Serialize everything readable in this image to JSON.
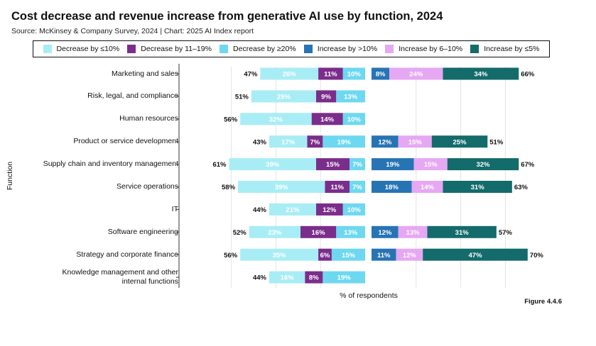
{
  "title": "Cost decrease and revenue increase from generative AI use by function, 2024",
  "subtitle": "Source: McKinsey & Company Survey, 2024 | Chart: 2025 AI Index report",
  "figure_label": "Figure 4.4.6",
  "legend": [
    {
      "label": "Decrease by ≤10%",
      "color": "#a8edf5"
    },
    {
      "label": "Decrease by 11–19%",
      "color": "#7b2d8b"
    },
    {
      "label": "Decrease by ≥20%",
      "color": "#6dd8f0"
    },
    {
      "label": "Increase by >10%",
      "color": "#2774b5"
    },
    {
      "label": "Increase by 6–10%",
      "color": "#e6a8f2"
    },
    {
      "label": "Increase by ≤5%",
      "color": "#136b6b"
    }
  ],
  "chart_data": {
    "type": "bar",
    "orientation": "horizontal-stacked-diverging",
    "xlabel": "% of respondents",
    "ylabel": "Function",
    "categories": [
      "Marketing and sales",
      "Risk, legal, and compliance",
      "Human resources",
      "Product or service development",
      "Supply chain and inventory management",
      "Service operations",
      "IT",
      "Software engineering",
      "Strategy and corporate finance",
      "Knowledge management and other internal functions"
    ],
    "category_lines": [
      [
        "Marketing and sales"
      ],
      [
        "Risk, legal, and compliance"
      ],
      [
        "Human resources"
      ],
      [
        "Product or service development"
      ],
      [
        "Supply chain and inventory management"
      ],
      [
        "Service operations"
      ],
      [
        "IT"
      ],
      [
        "Software engineering"
      ],
      [
        "Strategy and corporate finance"
      ],
      [
        "Knowledge management and other",
        "internal functions"
      ]
    ],
    "cost_decrease": {
      "totals": [
        47,
        51,
        56,
        43,
        61,
        58,
        44,
        52,
        56,
        44
      ],
      "series": [
        {
          "name": "Decrease by ≤10%",
          "values": [
            26,
            29,
            32,
            17,
            39,
            39,
            21,
            23,
            35,
            16
          ],
          "labels": [
            "26%",
            "29%",
            "32%",
            "17%",
            "39%",
            "39%",
            "21%",
            "23%",
            "35%",
            "16%"
          ]
        },
        {
          "name": "Decrease by 11–19%",
          "values": [
            11,
            9,
            14,
            7,
            15,
            11,
            12,
            16,
            6,
            8
          ],
          "labels": [
            "11%",
            "9%",
            "14%",
            "7%",
            "15%",
            "11%",
            "12%",
            "16%",
            "6%",
            "8%"
          ]
        },
        {
          "name": "Decrease by ≥20%",
          "values": [
            10,
            13,
            10,
            19,
            7,
            7,
            10,
            13,
            15,
            19
          ],
          "labels": [
            "10%",
            "13%",
            "10%",
            "19%",
            "7%",
            "7%",
            "10%",
            "13%",
            "15%",
            "19%"
          ]
        }
      ]
    },
    "revenue_increase": {
      "totals": [
        66,
        null,
        null,
        51,
        67,
        63,
        null,
        57,
        70,
        null
      ],
      "series": [
        {
          "name": "Increase by >10%",
          "values": [
            8,
            null,
            null,
            12,
            19,
            18,
            null,
            12,
            11,
            null
          ],
          "labels": [
            "8%",
            "",
            "",
            "12%",
            "19%",
            "18%",
            "",
            "12%",
            "11%",
            ""
          ]
        },
        {
          "name": "Increase by 6–10%",
          "values": [
            24,
            null,
            null,
            15,
            15,
            14,
            null,
            13,
            12,
            null
          ],
          "labels": [
            "24%",
            "",
            "",
            "15%",
            "15%",
            "14%",
            "",
            "13%",
            "12%",
            ""
          ]
        },
        {
          "name": "Increase by ≤5%",
          "values": [
            34,
            null,
            null,
            25,
            32,
            31,
            null,
            31,
            47,
            null
          ],
          "labels": [
            "34%",
            "",
            "",
            "25%",
            "32%",
            "31%",
            "",
            "31%",
            "47%",
            ""
          ]
        }
      ]
    },
    "total_labels_cost": [
      "47%",
      "51%",
      "56%",
      "43%",
      "61%",
      "58%",
      "44%",
      "52%",
      "56%",
      "44%"
    ],
    "total_labels_revenue": [
      "66%",
      "",
      "",
      "51%",
      "67%",
      "63%",
      "",
      "57%",
      "70%",
      ""
    ],
    "gridlines": true,
    "legend_position": "top"
  }
}
